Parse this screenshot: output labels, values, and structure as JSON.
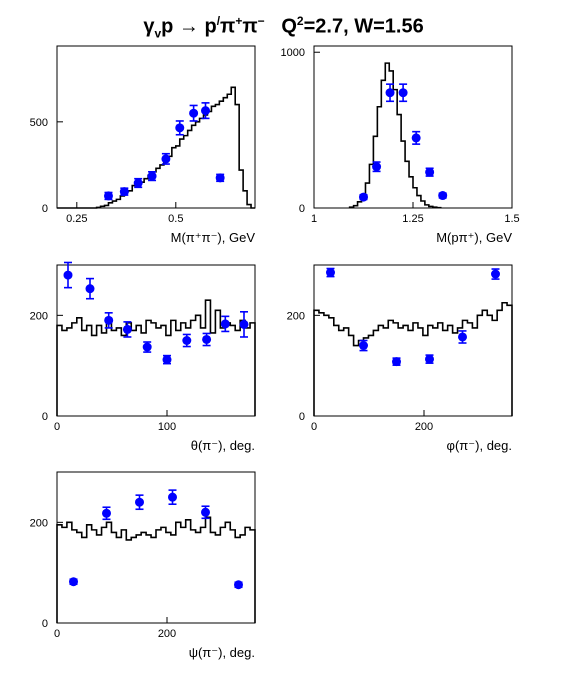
{
  "title": {
    "reaction_gamma": "γ",
    "reaction_v": "v",
    "reaction_p": "p",
    "reaction_arrow": "→",
    "reaction_p2": "p",
    "reaction_prime": "/",
    "reaction_pi": "π",
    "reaction_plus": "+",
    "reaction_pi2": "π",
    "reaction_minus": "−",
    "q2_label": "Q",
    "q2_exp": "2",
    "q2_value": "=2.7, W=1.56"
  },
  "chart_data": [
    {
      "type": "scatter",
      "id": "m-pipi",
      "xlabel": "M(π⁺π⁻), GeV",
      "xlim": [
        0.2,
        0.7
      ],
      "ylim": [
        0,
        940
      ],
      "xticks": [
        {
          "v": 0.25,
          "label": "0.25"
        },
        {
          "v": 0.5,
          "label": "0.5"
        }
      ],
      "yticks": [
        {
          "v": 0,
          "label": "0"
        },
        {
          "v": 500,
          "label": "500"
        }
      ],
      "histogram": {
        "x0": 0.2,
        "dx": 0.01,
        "values": [
          0,
          0,
          0,
          0,
          0,
          0,
          0,
          0,
          0,
          0,
          3,
          10,
          15,
          30,
          40,
          50,
          70,
          95,
          100,
          130,
          140,
          150,
          170,
          190,
          210,
          230,
          250,
          280,
          300,
          350,
          360,
          400,
          420,
          450,
          480,
          500,
          520,
          540,
          560,
          590,
          600,
          620,
          640,
          660,
          700,
          600,
          220,
          100,
          20,
          0
        ]
      },
      "points": [
        {
          "x": 0.33,
          "y": 70,
          "err": 20
        },
        {
          "x": 0.37,
          "y": 95,
          "err": 20
        },
        {
          "x": 0.405,
          "y": 145,
          "err": 25
        },
        {
          "x": 0.44,
          "y": 185,
          "err": 25
        },
        {
          "x": 0.475,
          "y": 285,
          "err": 30
        },
        {
          "x": 0.51,
          "y": 465,
          "err": 40
        },
        {
          "x": 0.545,
          "y": 550,
          "err": 45
        },
        {
          "x": 0.575,
          "y": 565,
          "err": 45
        },
        {
          "x": 0.612,
          "y": 175,
          "err": 20
        }
      ]
    },
    {
      "type": "scatter",
      "id": "m-ppi",
      "xlabel": "M(pπ⁺), GeV",
      "xlim": [
        1.0,
        1.5
      ],
      "ylim": [
        0,
        1040
      ],
      "xticks": [
        {
          "v": 1.0,
          "label": "1"
        },
        {
          "v": 1.25,
          "label": "1.25"
        },
        {
          "v": 1.5,
          "label": "1.5"
        }
      ],
      "yticks": [
        {
          "v": 0,
          "label": "0"
        },
        {
          "v": 1000,
          "label": "1000"
        }
      ],
      "histogram": {
        "x0": 1.09,
        "dx": 0.01,
        "values": [
          5,
          15,
          40,
          80,
          160,
          280,
          460,
          650,
          820,
          930,
          880,
          760,
          600,
          430,
          300,
          200,
          130,
          80,
          45,
          20,
          10,
          5,
          2
        ]
      },
      "points": [
        {
          "x": 1.125,
          "y": 70,
          "err": 15
        },
        {
          "x": 1.158,
          "y": 265,
          "err": 30
        },
        {
          "x": 1.192,
          "y": 740,
          "err": 55
        },
        {
          "x": 1.225,
          "y": 740,
          "err": 55
        },
        {
          "x": 1.258,
          "y": 450,
          "err": 40
        },
        {
          "x": 1.292,
          "y": 230,
          "err": 25
        },
        {
          "x": 1.325,
          "y": 80,
          "err": 15
        }
      ]
    },
    {
      "type": "scatter",
      "id": "theta-pi",
      "xlabel": "θ(π⁻), deg.",
      "xlim": [
        0,
        180
      ],
      "ylim": [
        0,
        300
      ],
      "xticks": [
        {
          "v": 0,
          "label": "0"
        },
        {
          "v": 100,
          "label": "100"
        }
      ],
      "yticks": [
        {
          "v": 0,
          "label": "0"
        },
        {
          "v": 200,
          "label": "200"
        }
      ],
      "histogram": {
        "x0": 0,
        "dx": 4.5,
        "values": [
          180,
          170,
          175,
          185,
          195,
          170,
          180,
          160,
          180,
          165,
          190,
          170,
          175,
          160,
          185,
          170,
          180,
          165,
          190,
          185,
          175,
          180,
          160,
          190,
          170,
          185,
          175,
          190,
          200,
          175,
          230,
          165,
          210,
          175,
          185,
          180,
          170,
          190,
          175,
          185
        ]
      },
      "points": [
        {
          "x": 10,
          "y": 280,
          "err": 25
        },
        {
          "x": 30,
          "y": 253,
          "err": 20
        },
        {
          "x": 47,
          "y": 190,
          "err": 15
        },
        {
          "x": 64,
          "y": 172,
          "err": 15
        },
        {
          "x": 82,
          "y": 137,
          "err": 10
        },
        {
          "x": 100,
          "y": 112,
          "err": 8
        },
        {
          "x": 118,
          "y": 150,
          "err": 12
        },
        {
          "x": 136,
          "y": 152,
          "err": 12
        },
        {
          "x": 153,
          "y": 183,
          "err": 15
        },
        {
          "x": 170,
          "y": 182,
          "err": 25
        }
      ]
    },
    {
      "type": "scatter",
      "id": "phi-pi",
      "xlabel": "φ(π⁻), deg.",
      "xlim": [
        0,
        360
      ],
      "ylim": [
        0,
        300
      ],
      "xticks": [
        {
          "v": 0,
          "label": "0"
        },
        {
          "v": 200,
          "label": "200"
        }
      ],
      "yticks": [
        {
          "v": 0,
          "label": "0"
        },
        {
          "v": 200,
          "label": "200"
        }
      ],
      "histogram": {
        "x0": 0,
        "dx": 9,
        "values": [
          210,
          205,
          200,
          195,
          180,
          170,
          175,
          160,
          140,
          150,
          155,
          160,
          170,
          180,
          175,
          190,
          185,
          175,
          180,
          170,
          185,
          175,
          160,
          180,
          175,
          185,
          170,
          180,
          165,
          175,
          190,
          185,
          175,
          200,
          210,
          200,
          190,
          210,
          225,
          220
        ]
      },
      "points": [
        {
          "x": 30,
          "y": 285,
          "err": 8
        },
        {
          "x": 90,
          "y": 140,
          "err": 10
        },
        {
          "x": 150,
          "y": 108,
          "err": 7
        },
        {
          "x": 210,
          "y": 113,
          "err": 8
        },
        {
          "x": 270,
          "y": 157,
          "err": 12
        },
        {
          "x": 330,
          "y": 282,
          "err": 10
        }
      ]
    },
    {
      "type": "scatter",
      "id": "psi-pi",
      "xlabel": "ψ(π⁻), deg.",
      "xlim": [
        0,
        360
      ],
      "ylim": [
        0,
        300
      ],
      "xticks": [
        {
          "v": 0,
          "label": "0"
        },
        {
          "v": 200,
          "label": "200"
        }
      ],
      "yticks": [
        {
          "v": 0,
          "label": "0"
        },
        {
          "v": 200,
          "label": "200"
        }
      ],
      "histogram": {
        "x0": 0,
        "dx": 9,
        "values": [
          195,
          190,
          200,
          185,
          180,
          170,
          195,
          185,
          175,
          190,
          200,
          180,
          170,
          185,
          165,
          170,
          175,
          180,
          175,
          170,
          185,
          190,
          180,
          175,
          200,
          190,
          205,
          185,
          180,
          190,
          210,
          180,
          175,
          190,
          200,
          185,
          170,
          175,
          190,
          185
        ]
      },
      "points": [
        {
          "x": 30,
          "y": 82,
          "err": 5
        },
        {
          "x": 90,
          "y": 218,
          "err": 12
        },
        {
          "x": 150,
          "y": 240,
          "err": 14
        },
        {
          "x": 210,
          "y": 250,
          "err": 14
        },
        {
          "x": 270,
          "y": 220,
          "err": 12
        },
        {
          "x": 330,
          "y": 76,
          "err": 5
        }
      ]
    }
  ]
}
